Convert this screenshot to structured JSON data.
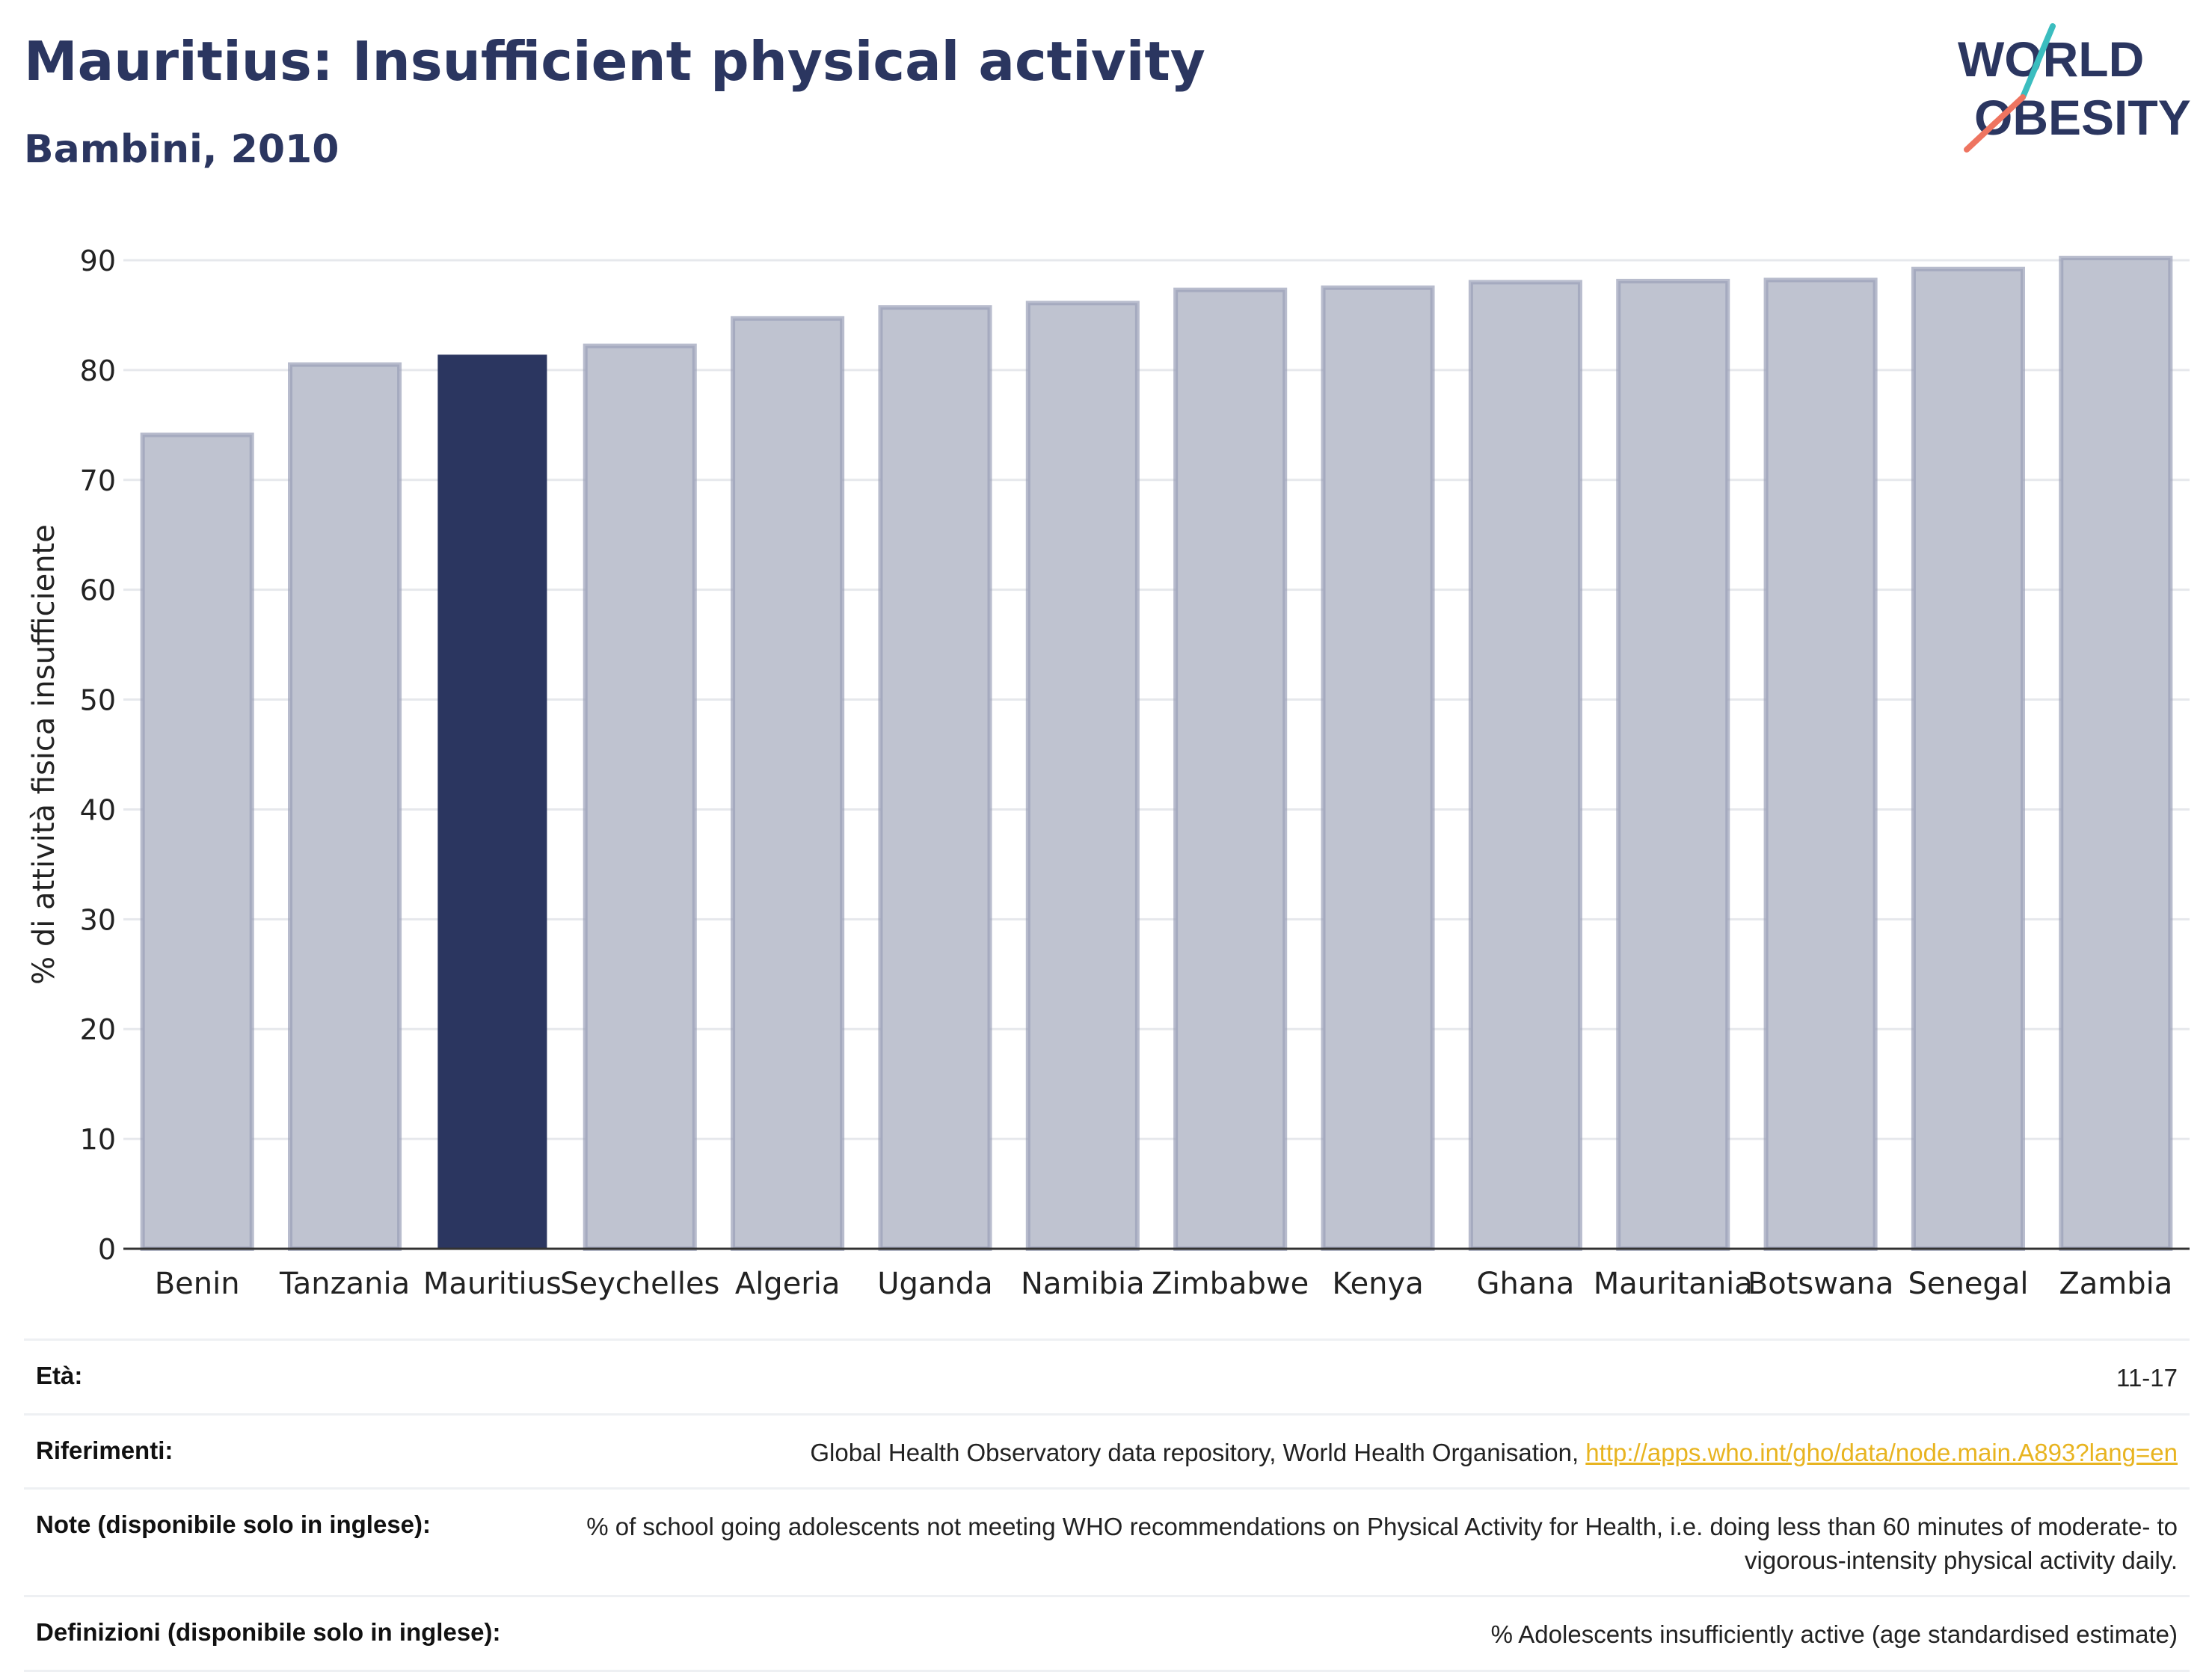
{
  "title": "Mauritius: Insufficient physical activity",
  "subtitle": "Bambini, 2010",
  "logo": {
    "line1": "WORLD",
    "line2": "OBESITY"
  },
  "colors": {
    "brand_navy": "#2b3660",
    "highlight_bar": "#2b3660",
    "other_bar_fill": "#bfc3d0",
    "other_bar_stroke": "#9aa0b8",
    "logo_teal": "#3bbdbf",
    "logo_coral": "#ee7460",
    "link": "#e8b420"
  },
  "chart_data": {
    "type": "bar",
    "ylabel": "% di attività fisica insufficiente",
    "xlabel": "",
    "ylim": [
      0,
      90
    ],
    "yticks": [
      0,
      10,
      20,
      30,
      40,
      50,
      60,
      70,
      80,
      90
    ],
    "grid": true,
    "highlight": "Mauritius",
    "categories": [
      "Benin",
      "Tanzania",
      "Mauritius",
      "Seychelles",
      "Algeria",
      "Uganda",
      "Namibia",
      "Zimbabwe",
      "Kenya",
      "Ghana",
      "Mauritania",
      "Botswana",
      "Senegal",
      "Zambia"
    ],
    "values": [
      74.1,
      80.5,
      81.4,
      82.2,
      84.7,
      85.7,
      86.1,
      87.3,
      87.5,
      88.0,
      88.1,
      88.2,
      89.2,
      90.2
    ]
  },
  "info": {
    "age_label": "Età:",
    "age_value": "11-17",
    "refs_label": "Riferimenti:",
    "refs_text": "Global Health Observatory data repository, World Health Organisation, ",
    "refs_link": "http://apps.who.int/gho/data/node.main.A893?lang=en",
    "notes_label": "Note (disponibile solo in inglese):",
    "notes_value": "% of school going adolescents not meeting WHO recommendations on Physical Activity for Health, i.e. doing less than 60 minutes of moderate- to vigorous-intensity physical activity daily.",
    "defs_label": "Definizioni (disponibile solo in inglese):",
    "defs_value": "% Adolescents insufficiently active (age standardised estimate)"
  }
}
